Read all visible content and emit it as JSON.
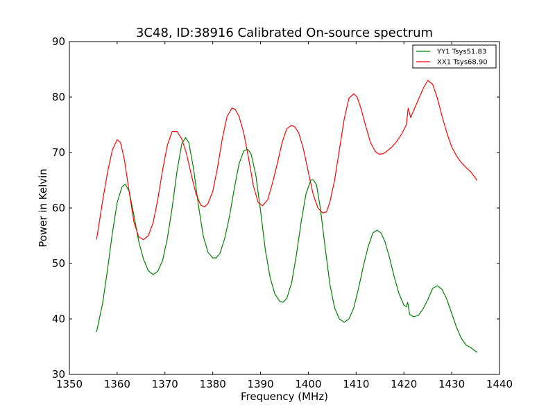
{
  "chart_data": {
    "type": "line",
    "title": "3C48, ID:38916 Calibrated On-source spectrum",
    "xlabel": "Frequency (MHz)",
    "ylabel": "Power in Kelvin",
    "xlim": [
      1350,
      1440
    ],
    "ylim": [
      30,
      90
    ],
    "xticks": [
      1350,
      1360,
      1370,
      1380,
      1390,
      1400,
      1410,
      1420,
      1430,
      1440
    ],
    "yticks": [
      30,
      40,
      50,
      60,
      70,
      80,
      90
    ],
    "grid": false,
    "legend_position": "top-right",
    "series": [
      {
        "name": "YY1 Tsys51.83",
        "color": "#008000",
        "x": [
          1355.7,
          1357,
          1358,
          1359,
          1360,
          1361,
          1361.7,
          1362.5,
          1363.5,
          1364.5,
          1365.5,
          1366.5,
          1367.5,
          1368.5,
          1369.5,
          1370.5,
          1371.5,
          1372.5,
          1373.5,
          1374.3,
          1375,
          1376,
          1377,
          1378,
          1379,
          1380,
          1380.7,
          1381.5,
          1382.5,
          1383.5,
          1384.5,
          1385.5,
          1386.5,
          1387.3,
          1388,
          1389,
          1390,
          1391,
          1392,
          1393,
          1394,
          1394.7,
          1395.5,
          1396.5,
          1397.5,
          1398.5,
          1399.5,
          1400.5,
          1401,
          1401.7,
          1402.5,
          1403.5,
          1404.5,
          1405.5,
          1406.5,
          1407.5,
          1408.5,
          1409.5,
          1410.5,
          1411.5,
          1412.5,
          1413.5,
          1414.4,
          1415.2,
          1416,
          1417,
          1418,
          1419,
          1420,
          1420.5,
          1420.8,
          1421.2,
          1422,
          1423,
          1424,
          1425,
          1426,
          1427,
          1428,
          1429,
          1430,
          1431,
          1432,
          1433,
          1434,
          1435.3
        ],
        "values": [
          37.7,
          43,
          49,
          55.5,
          61,
          63.8,
          64.3,
          63,
          58.7,
          54,
          50.8,
          48.7,
          48,
          48.6,
          50.5,
          54.5,
          60,
          66.5,
          71.5,
          72.7,
          71.8,
          67,
          60.5,
          55,
          52,
          51,
          51,
          51.8,
          54.5,
          58.5,
          63.5,
          68,
          70.3,
          70.6,
          69.8,
          66,
          59.5,
          52.5,
          47.5,
          44.5,
          43.2,
          43,
          43.7,
          46.5,
          51.5,
          57.5,
          62.5,
          65,
          65.1,
          64.2,
          60,
          53,
          46.3,
          42,
          40,
          39.4,
          40,
          42,
          45.5,
          49.5,
          53,
          55.5,
          56,
          55.5,
          54,
          51,
          47.5,
          44.5,
          42.5,
          42.2,
          43,
          40.8,
          40.4,
          40.6,
          41.8,
          43.5,
          45.5,
          46,
          45.3,
          43.5,
          41,
          38.5,
          36.5,
          35.3,
          34.8,
          34
        ]
      },
      {
        "name": "XX1 Tsys68.90",
        "color": "#ff0000",
        "x": [
          1355.7,
          1357,
          1358,
          1359,
          1360,
          1360.7,
          1361.5,
          1362.5,
          1363.5,
          1364.5,
          1365.5,
          1366.5,
          1367.5,
          1368.5,
          1369.5,
          1370.5,
          1371.5,
          1372.5,
          1373.5,
          1374.5,
          1375.5,
          1376.5,
          1377.5,
          1378.3,
          1379,
          1380,
          1381,
          1382,
          1383,
          1384,
          1384.7,
          1385.5,
          1386.5,
          1387.5,
          1388.5,
          1389.5,
          1390.4,
          1391.5,
          1392.5,
          1393.5,
          1394.5,
          1395.5,
          1396.5,
          1397.2,
          1398,
          1399,
          1400,
          1401,
          1402,
          1403,
          1403.8,
          1404.5,
          1405.5,
          1406.5,
          1407.5,
          1408.5,
          1409.5,
          1410.2,
          1411,
          1412,
          1413,
          1414,
          1414.8,
          1415.7,
          1416.5,
          1417.5,
          1418.5,
          1419.5,
          1420.5,
          1420.9,
          1421.4,
          1422,
          1423,
          1424,
          1425,
          1426,
          1427,
          1428,
          1429,
          1430,
          1431,
          1432,
          1433,
          1434,
          1435.3
        ],
        "values": [
          54.4,
          61.5,
          66.5,
          70.5,
          72.3,
          71.8,
          68.8,
          63,
          57.5,
          54.8,
          54.3,
          55,
          57.3,
          61.5,
          66.8,
          71.3,
          73.8,
          73.8,
          72.5,
          69.8,
          66,
          62.5,
          60.5,
          60.2,
          60.8,
          63,
          67.3,
          72.5,
          76.5,
          78,
          77.8,
          76.5,
          73.5,
          69,
          64,
          61,
          60.4,
          61.5,
          64.5,
          68,
          71.8,
          74.3,
          74.9,
          74.6,
          73.5,
          70.5,
          66.5,
          62.5,
          60,
          59.1,
          59.3,
          61,
          65,
          70.5,
          76,
          79.8,
          80.6,
          80,
          78,
          74.8,
          71.8,
          70.2,
          69.7,
          69.8,
          70.3,
          71,
          72,
          73.3,
          75,
          78,
          76.3,
          77.5,
          79.5,
          81.5,
          83,
          82.3,
          79.8,
          76.5,
          73.5,
          71,
          69.4,
          68.2,
          67.3,
          66.5,
          65
        ]
      }
    ]
  }
}
